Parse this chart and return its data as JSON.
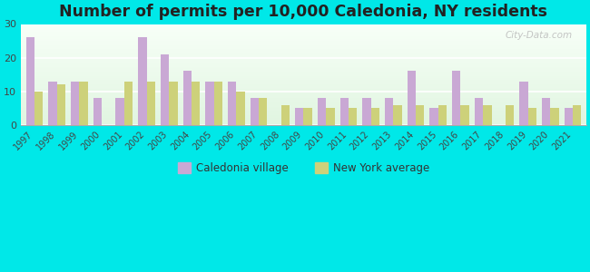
{
  "title": "Number of permits per 10,000 Caledonia, NY residents",
  "years": [
    1997,
    1998,
    1999,
    2000,
    2001,
    2002,
    2003,
    2004,
    2005,
    2006,
    2007,
    2008,
    2009,
    2010,
    2011,
    2012,
    2013,
    2014,
    2015,
    2016,
    2017,
    2018,
    2019,
    2020,
    2021
  ],
  "caledonia": [
    26,
    13,
    13,
    8,
    8,
    26,
    21,
    16,
    13,
    13,
    8,
    0,
    5,
    8,
    8,
    8,
    8,
    16,
    5,
    16,
    8,
    0,
    13,
    8,
    5
  ],
  "ny_avg": [
    10,
    12,
    13,
    0,
    13,
    13,
    13,
    13,
    13,
    10,
    8,
    6,
    5,
    5,
    5,
    5,
    6,
    6,
    6,
    6,
    6,
    6,
    5,
    5,
    6
  ],
  "caledonia_color": "#c9a8d4",
  "ny_avg_color": "#cdd17a",
  "ylim": [
    0,
    30
  ],
  "yticks": [
    0,
    10,
    20,
    30
  ],
  "outer_bg": "#00e8e8",
  "bar_width": 0.38,
  "title_fontsize": 12.5,
  "legend_caledonia": "Caledonia village",
  "legend_ny": "New York average",
  "grid_color": "#ffffff",
  "spine_color": "#aaaaaa",
  "tick_color": "#444444",
  "watermark": "City-Data.com"
}
